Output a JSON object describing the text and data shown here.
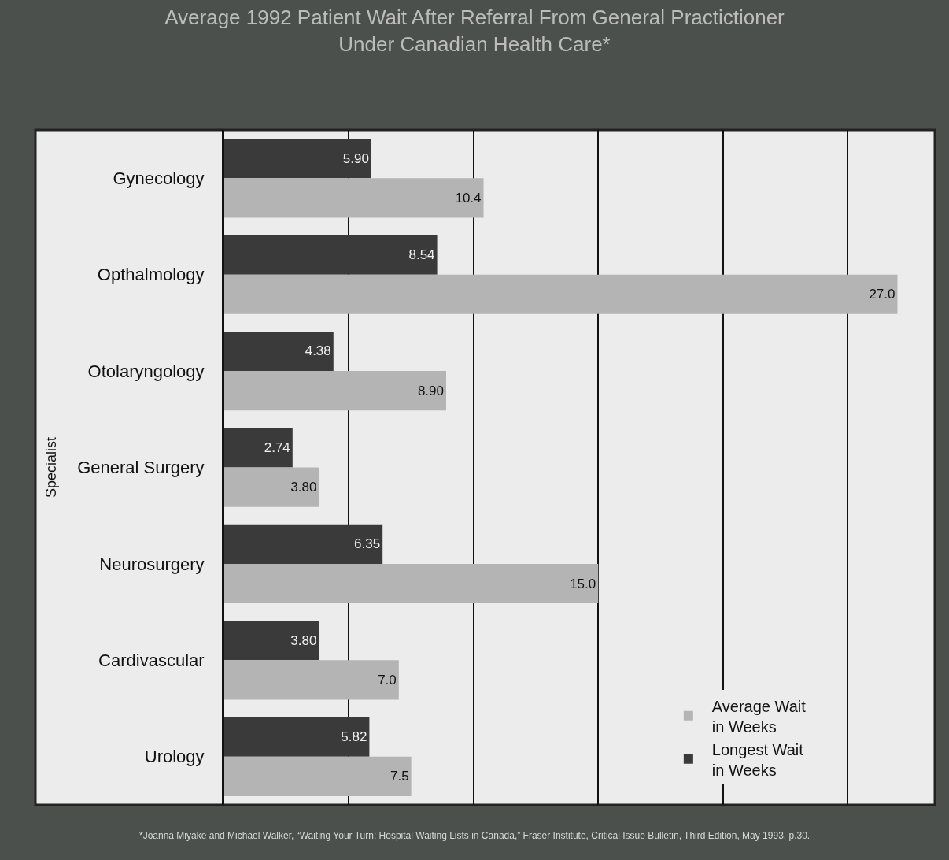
{
  "chart_data": {
    "type": "bar",
    "orientation": "horizontal",
    "title": "Average 1992 Patient Wait After Referral From General Practictioner Under Canadian Health Care*",
    "ylabel": "Specialist",
    "categories": [
      "Gynecology",
      "Opthalmology",
      "Otolaryngology",
      "General Surgery",
      "Neurosurgery",
      "Cardivascular",
      "Urology"
    ],
    "series": [
      {
        "name": "Longest Wait in Weeks",
        "color": "#3a3a3a",
        "values": [
          5.9,
          8.54,
          4.38,
          2.74,
          6.35,
          3.8,
          5.82
        ],
        "value_labels": [
          "5.90",
          "8.54",
          "4.38",
          "2.74",
          "6.35",
          "3.80",
          "5.82"
        ]
      },
      {
        "name": "Average Wait in Weeks",
        "color": "#b4b4b4",
        "values": [
          10.4,
          27.0,
          8.9,
          3.8,
          15.0,
          7.0,
          7.5
        ],
        "value_labels": [
          "10.4",
          "27.0",
          "8.90",
          "3.80",
          "15.0",
          "7.0",
          "7.5"
        ]
      }
    ],
    "xlim": [
      0,
      28.5
    ],
    "xticks": [
      {
        "value": 0,
        "label": null
      },
      {
        "value": 5,
        "label": null
      },
      {
        "value": 10,
        "label": null
      },
      {
        "value": 15,
        "label": null
      },
      {
        "value": 20,
        "label": null
      },
      {
        "value": 25,
        "label": null
      }
    ],
    "grid": "x",
    "tick_labels": "y",
    "legend": "bottom right",
    "annotations": [
      "*Joanna Miyake and Michael Walker, “Waiting Your Turn: Hospital Waiting Lists in Canada,” Fraser Institute, Critical Issue Bulletin, Third Edition, May 1993, p.30."
    ]
  }
}
